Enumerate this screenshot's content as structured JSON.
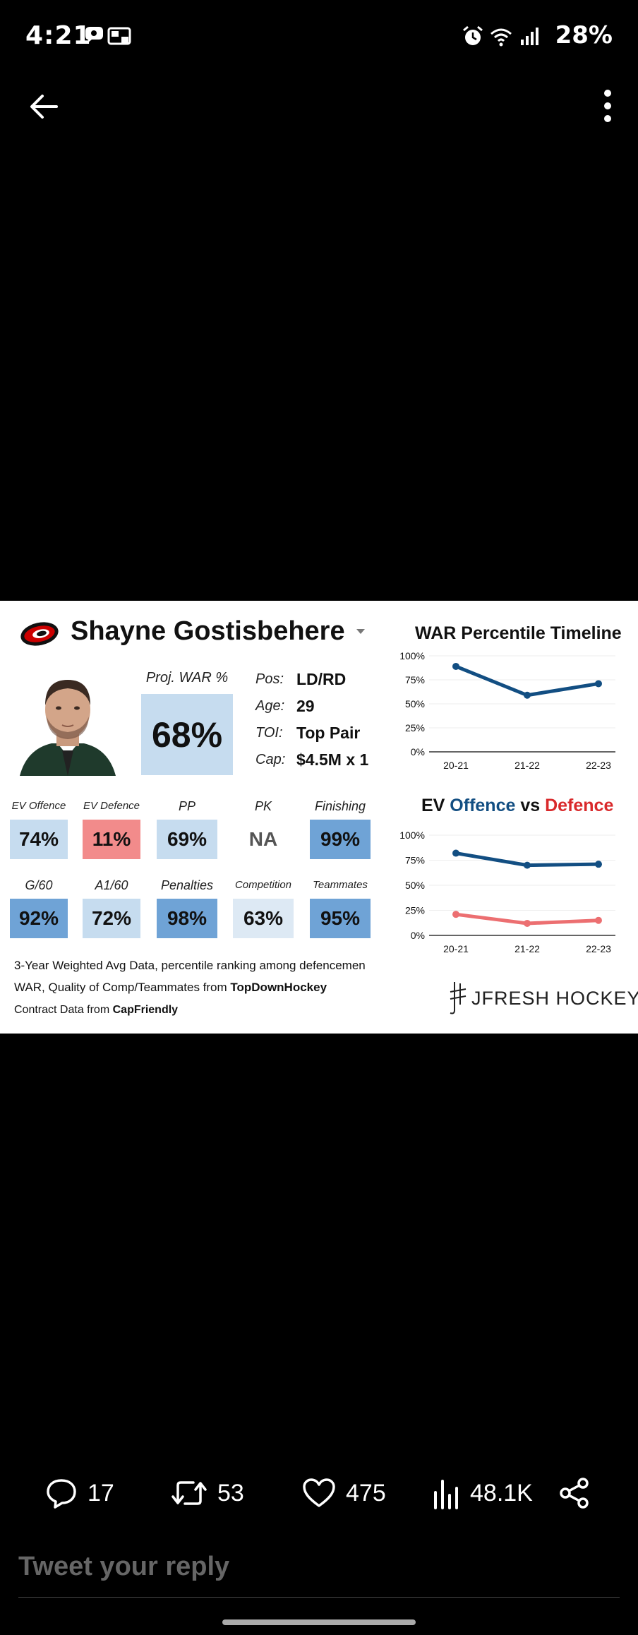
{
  "status_bar": {
    "time": "4:21",
    "battery": "28%"
  },
  "player": {
    "name": "Shayne Gostisbehere",
    "proj_war_label": "Proj. WAR %",
    "proj_war_value": "68%",
    "info": [
      {
        "key": "Pos:",
        "value": "LD/RD"
      },
      {
        "key": "Age:",
        "value": "29"
      },
      {
        "key": "TOI:",
        "value": "Top Pair"
      },
      {
        "key": "Cap:",
        "value": "$4.5M x 1"
      }
    ],
    "metrics": [
      {
        "label": "EV Offence",
        "value": "74%",
        "color": "#c6dcef"
      },
      {
        "label": "EV Defence",
        "value": "11%",
        "color": "#f28b8b"
      },
      {
        "label": "PP",
        "value": "69%",
        "color": "#c6dcef"
      },
      {
        "label": "PK",
        "value": "NA",
        "color": "#ffffff"
      },
      {
        "label": "Finishing",
        "value": "99%",
        "color": "#6fa3d6"
      },
      {
        "label": "G/60",
        "value": "92%",
        "color": "#6fa3d6"
      },
      {
        "label": "A1/60",
        "value": "72%",
        "color": "#c6dcef"
      },
      {
        "label": "Penalties",
        "value": "98%",
        "color": "#6fa3d6"
      },
      {
        "label": "Competition",
        "value": "63%",
        "color": "#dde9f4"
      },
      {
        "label": "Teammates",
        "value": "95%",
        "color": "#6fa3d6"
      }
    ],
    "footnotes": {
      "line1": "3-Year Weighted Avg Data, percentile ranking among defencemen",
      "line2_prefix": "WAR, Quality of Comp/Teammates from ",
      "line2_bold": "TopDownHockey",
      "line3_prefix": "Contract Data from ",
      "line3_bold": "CapFriendly"
    },
    "brand": "JFRESH HOCKEY"
  },
  "chart_data": [
    {
      "type": "line",
      "title": "WAR Percentile Timeline",
      "categories": [
        "20-21",
        "21-22",
        "22-23"
      ],
      "yticks": [
        "0%",
        "25%",
        "50%",
        "75%",
        "100%"
      ],
      "ylim": [
        0,
        100
      ],
      "series": [
        {
          "values": [
            89,
            59,
            71
          ],
          "color": "#124e82"
        }
      ]
    },
    {
      "type": "line",
      "title_parts": [
        "EV ",
        "Offence",
        " vs ",
        "Defence"
      ],
      "categories": [
        "20-21",
        "21-22",
        "22-23"
      ],
      "yticks": [
        "0%",
        "25%",
        "50%",
        "75%",
        "100%"
      ],
      "ylim": [
        0,
        100
      ],
      "series": [
        {
          "values": [
            82,
            70,
            71
          ],
          "color": "#124e82"
        },
        {
          "values": [
            21,
            12,
            15
          ],
          "color": "#ec6f71"
        }
      ]
    }
  ],
  "actions": {
    "replies": "17",
    "retweets": "53",
    "likes": "475",
    "views": "48.1K"
  },
  "reply_placeholder": "Tweet your reply"
}
